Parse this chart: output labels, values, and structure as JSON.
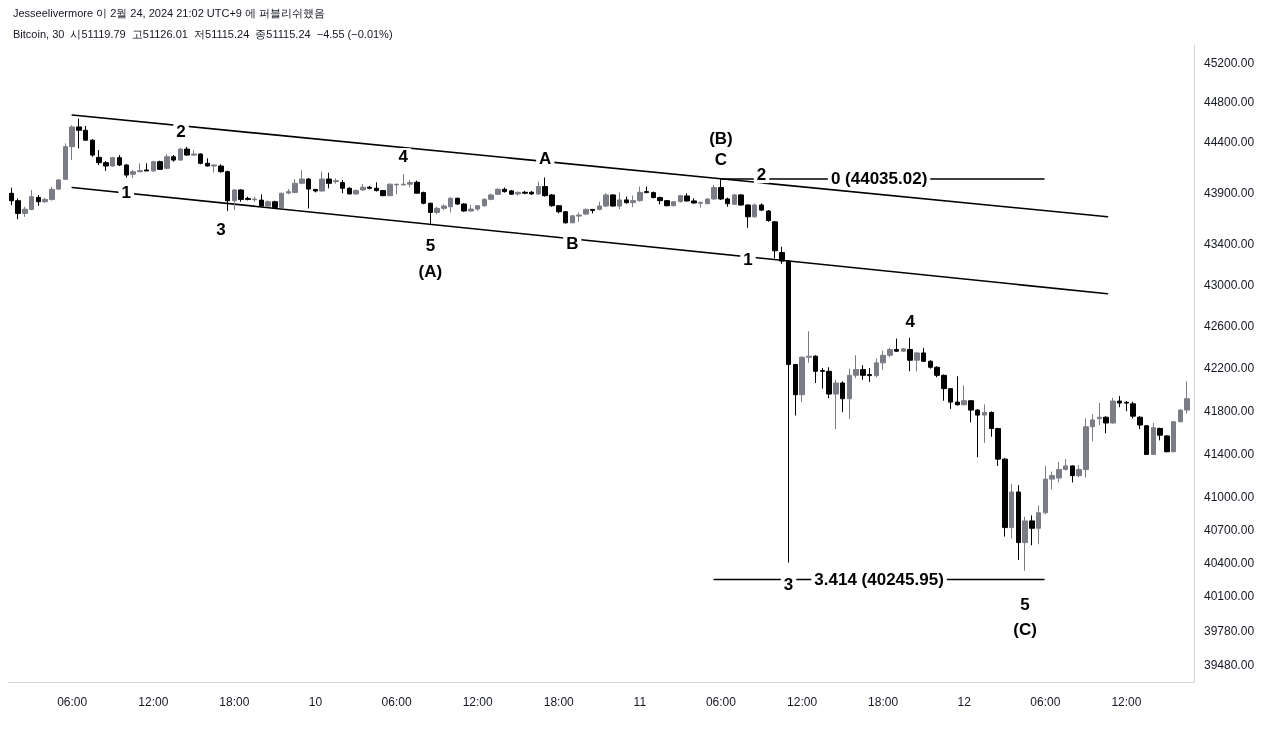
{
  "chart_data": {
    "type": "candlestick",
    "title": "Jesseelivermore 이 2월 24, 2024 21:02 UTC+9 에 퍼블리쉬했음",
    "subtitle": "Bitcoin, 30  시51119.79  고51126.01  저51115.24  종51115.24  −4.55 (−0.01%)",
    "log": "y",
    "grid": false,
    "xlim": [
      "2024-02-09T01:15",
      "2024-02-12T17:00"
    ],
    "xticks": [
      {
        "value": "2024-02-09T06:00",
        "label": "06:00"
      },
      {
        "value": "2024-02-09T12:00",
        "label": "12:00"
      },
      {
        "value": "2024-02-09T18:00",
        "label": "18:00"
      },
      {
        "value": "2024-02-10",
        "label": "10"
      },
      {
        "value": "2024-02-10T06:00",
        "label": "06:00"
      },
      {
        "value": "2024-02-10T12:00",
        "label": "12:00"
      },
      {
        "value": "2024-02-10T18:00",
        "label": "18:00"
      },
      {
        "value": "2024-02-11",
        "label": "11"
      },
      {
        "value": "2024-02-11T06:00",
        "label": "06:00"
      },
      {
        "value": "2024-02-11T12:00",
        "label": "12:00"
      },
      {
        "value": "2024-02-11T18:00",
        "label": "18:00"
      },
      {
        "value": "2024-02-12",
        "label": "12"
      },
      {
        "value": "2024-02-12T06:00",
        "label": "06:00"
      },
      {
        "value": "2024-02-12T12:00",
        "label": "12:00"
      }
    ],
    "ylim": [
      39330,
      45380
    ],
    "yticks": [
      {
        "value": 45200,
        "label": "45200.00"
      },
      {
        "value": 44800,
        "label": "44800.00"
      },
      {
        "value": 44400,
        "label": "44400.00"
      },
      {
        "value": 43900,
        "label": "43900.00"
      },
      {
        "value": 43400,
        "label": "43400.00"
      },
      {
        "value": 43000,
        "label": "43000.00"
      },
      {
        "value": 42600,
        "label": "42600.00"
      },
      {
        "value": 42200,
        "label": "42200.00"
      },
      {
        "value": 41800,
        "label": "41800.00"
      },
      {
        "value": 41400,
        "label": "41400.00"
      },
      {
        "value": 41000,
        "label": "41000.00"
      },
      {
        "value": 40700,
        "label": "40700.00"
      },
      {
        "value": 40400,
        "label": "40400.00"
      },
      {
        "value": 40100,
        "label": "40100.00"
      },
      {
        "value": 39780,
        "label": "39780.00"
      },
      {
        "value": 39480,
        "label": "39480.00"
      }
    ],
    "x": [
      "2024-02-09T01:30",
      "2024-02-09T02:00",
      "2024-02-09T02:30",
      "2024-02-09T03:00",
      "2024-02-09T03:30",
      "2024-02-09T04:00",
      "2024-02-09T04:30",
      "2024-02-09T05:00",
      "2024-02-09T05:30",
      "2024-02-09T06:00",
      "2024-02-09T06:30",
      "2024-02-09T07:00",
      "2024-02-09T07:30",
      "2024-02-09T08:00",
      "2024-02-09T08:30",
      "2024-02-09T09:00",
      "2024-02-09T09:30",
      "2024-02-09T10:00",
      "2024-02-09T10:30",
      "2024-02-09T11:00",
      "2024-02-09T11:30",
      "2024-02-09T12:00",
      "2024-02-09T12:30",
      "2024-02-09T13:00",
      "2024-02-09T13:30",
      "2024-02-09T14:00",
      "2024-02-09T14:30",
      "2024-02-09T15:00",
      "2024-02-09T15:30",
      "2024-02-09T16:00",
      "2024-02-09T16:30",
      "2024-02-09T17:00",
      "2024-02-09T17:30",
      "2024-02-09T18:00",
      "2024-02-09T18:30",
      "2024-02-09T19:00",
      "2024-02-09T19:30",
      "2024-02-09T20:00",
      "2024-02-09T20:30",
      "2024-02-09T21:00",
      "2024-02-09T21:30",
      "2024-02-09T22:00",
      "2024-02-09T22:30",
      "2024-02-09T23:00",
      "2024-02-09T23:30",
      "2024-02-10T00:00",
      "2024-02-10T00:30",
      "2024-02-10T01:00",
      "2024-02-10T01:30",
      "2024-02-10T02:00",
      "2024-02-10T02:30",
      "2024-02-10T03:00",
      "2024-02-10T03:30",
      "2024-02-10T04:00",
      "2024-02-10T04:30",
      "2024-02-10T05:00",
      "2024-02-10T05:30",
      "2024-02-10T06:00",
      "2024-02-10T06:30",
      "2024-02-10T07:00",
      "2024-02-10T07:30",
      "2024-02-10T08:00",
      "2024-02-10T08:30",
      "2024-02-10T09:00",
      "2024-02-10T09:30",
      "2024-02-10T10:00",
      "2024-02-10T10:30",
      "2024-02-10T11:00",
      "2024-02-10T11:30",
      "2024-02-10T12:00",
      "2024-02-10T12:30",
      "2024-02-10T13:00",
      "2024-02-10T13:30",
      "2024-02-10T14:00",
      "2024-02-10T14:30",
      "2024-02-10T15:00",
      "2024-02-10T15:30",
      "2024-02-10T16:00",
      "2024-02-10T16:30",
      "2024-02-10T17:00",
      "2024-02-10T17:30",
      "2024-02-10T18:00",
      "2024-02-10T18:30",
      "2024-02-10T19:00",
      "2024-02-10T19:30",
      "2024-02-10T20:00",
      "2024-02-10T20:30",
      "2024-02-10T21:00",
      "2024-02-10T21:30",
      "2024-02-10T22:00",
      "2024-02-10T22:30",
      "2024-02-10T23:00",
      "2024-02-10T23:30",
      "2024-02-11T00:00",
      "2024-02-11T00:30",
      "2024-02-11T01:00",
      "2024-02-11T01:30",
      "2024-02-11T02:00",
      "2024-02-11T02:30",
      "2024-02-11T03:00",
      "2024-02-11T03:30",
      "2024-02-11T04:00",
      "2024-02-11T04:30",
      "2024-02-11T05:00",
      "2024-02-11T05:30",
      "2024-02-11T06:00",
      "2024-02-11T06:30",
      "2024-02-11T07:00",
      "2024-02-11T07:30",
      "2024-02-11T08:00",
      "2024-02-11T08:30",
      "2024-02-11T09:00",
      "2024-02-11T09:30",
      "2024-02-11T10:00",
      "2024-02-11T10:30",
      "2024-02-11T11:00",
      "2024-02-11T11:30",
      "2024-02-11T12:00",
      "2024-02-11T12:30",
      "2024-02-11T13:00",
      "2024-02-11T13:30",
      "2024-02-11T14:00",
      "2024-02-11T14:30",
      "2024-02-11T15:00",
      "2024-02-11T15:30",
      "2024-02-11T16:00",
      "2024-02-11T16:30",
      "2024-02-11T17:00",
      "2024-02-11T17:30",
      "2024-02-11T18:00",
      "2024-02-11T18:30",
      "2024-02-11T19:00",
      "2024-02-11T19:30",
      "2024-02-11T20:00",
      "2024-02-11T20:30",
      "2024-02-11T21:00",
      "2024-02-11T21:30",
      "2024-02-11T22:00",
      "2024-02-11T22:30",
      "2024-02-11T23:00",
      "2024-02-11T23:30",
      "2024-02-12T00:00",
      "2024-02-12T00:30",
      "2024-02-12T01:00",
      "2024-02-12T01:30",
      "2024-02-12T02:00",
      "2024-02-12T02:30",
      "2024-02-12T03:00",
      "2024-02-12T03:30",
      "2024-02-12T04:00",
      "2024-02-12T04:30",
      "2024-02-12T05:00",
      "2024-02-12T05:30",
      "2024-02-12T06:00",
      "2024-02-12T06:30",
      "2024-02-12T07:00",
      "2024-02-12T07:30",
      "2024-02-12T08:00",
      "2024-02-12T08:30",
      "2024-02-12T09:00",
      "2024-02-12T09:30",
      "2024-02-12T10:00",
      "2024-02-12T10:30",
      "2024-02-12T11:00",
      "2024-02-12T11:30",
      "2024-02-12T12:00",
      "2024-02-12T12:30",
      "2024-02-12T13:00",
      "2024-02-12T13:30",
      "2024-02-12T14:00",
      "2024-02-12T14:30",
      "2024-02-12T15:00",
      "2024-02-12T15:30",
      "2024-02-12T16:00",
      "2024-02-12T16:30"
    ],
    "ohlc": [
      [
        43893,
        43949,
        43777,
        43820
      ],
      [
        43820,
        43843,
        43638,
        43695
      ],
      [
        43695,
        43760,
        43662,
        43737
      ],
      [
        43734,
        43926,
        43728,
        43860
      ],
      [
        43853,
        43876,
        43770,
        43810
      ],
      [
        43810,
        43850,
        43800,
        43833
      ],
      [
        43833,
        43958,
        43820,
        43932
      ],
      [
        43935,
        44034,
        43926,
        44025
      ],
      [
        44031,
        44388,
        44025,
        44355
      ],
      [
        44355,
        44569,
        44222,
        44552
      ],
      [
        44552,
        44635,
        44338,
        44519
      ],
      [
        44519,
        44562,
        44414,
        44420
      ],
      [
        44420,
        44430,
        44255,
        44272
      ],
      [
        44249,
        44322,
        44173,
        44196
      ],
      [
        44196,
        44213,
        44114,
        44163
      ],
      [
        44163,
        44255,
        44157,
        44246
      ],
      [
        44246,
        44272,
        44163,
        44173
      ],
      [
        44173,
        44183,
        44048,
        44074
      ],
      [
        44081,
        44124,
        44041,
        44107
      ],
      [
        44107,
        44190,
        44100,
        44117
      ],
      [
        44124,
        44190,
        44114,
        44114
      ],
      [
        44114,
        44216,
        44107,
        44206
      ],
      [
        44206,
        44216,
        44124,
        44130
      ],
      [
        44140,
        44279,
        44130,
        44255
      ],
      [
        44255,
        44272,
        44206,
        44222
      ],
      [
        44222,
        44345,
        44216,
        44331
      ],
      [
        44331,
        44354,
        44265,
        44272
      ],
      [
        44272,
        44322,
        44265,
        44282
      ],
      [
        44282,
        44289,
        44180,
        44190
      ],
      [
        44190,
        44239,
        44157,
        44163
      ],
      [
        44163,
        44180,
        44100,
        44173
      ],
      [
        44163,
        44180,
        44097,
        44107
      ],
      [
        44107,
        44117,
        43718,
        43820
      ],
      [
        43820,
        43935,
        43728,
        43926
      ],
      [
        43926,
        43935,
        43810,
        43833
      ],
      [
        43843,
        43860,
        43823,
        43833
      ],
      [
        43830,
        43860,
        43810,
        43836
      ],
      [
        43826,
        43883,
        43760,
        43767
      ],
      [
        43767,
        43823,
        43757,
        43810
      ],
      [
        43810,
        43820,
        43744,
        43754
      ],
      [
        43754,
        43902,
        43751,
        43893
      ],
      [
        43896,
        43935,
        43883,
        43909
      ],
      [
        43902,
        44034,
        43893,
        43992
      ],
      [
        43992,
        44124,
        43982,
        44034
      ],
      [
        44034,
        44041,
        43744,
        43935
      ],
      [
        43932,
        43935,
        43902,
        43916
      ],
      [
        43916,
        44107,
        43909,
        44034
      ],
      [
        44034,
        44097,
        43942,
        43992
      ],
      [
        44008,
        44041,
        43988,
        44018
      ],
      [
        43999,
        44025,
        43894,
        43943
      ],
      [
        43943,
        43953,
        43884,
        43887
      ],
      [
        43887,
        43933,
        43877,
        43920
      ],
      [
        43927,
        43986,
        43917,
        43953
      ],
      [
        43953,
        43966,
        43933,
        43943
      ],
      [
        43943,
        44002,
        43910,
        43920
      ],
      [
        43920,
        43927,
        43864,
        43870
      ],
      [
        43870,
        43992,
        43864,
        43983
      ],
      [
        43976,
        43986,
        43884,
        43983
      ],
      [
        43976,
        44082,
        43969,
        43983
      ],
      [
        43983,
        44025,
        43953,
        43999
      ],
      [
        44002,
        44019,
        43894,
        43894
      ],
      [
        43900,
        43910,
        43785,
        43795
      ],
      [
        43795,
        43801,
        43587,
        43705
      ],
      [
        43705,
        43761,
        43689,
        43745
      ],
      [
        43745,
        43785,
        43728,
        43768
      ],
      [
        43761,
        43854,
        43705,
        43844
      ],
      [
        43844,
        43851,
        43778,
        43788
      ],
      [
        43788,
        43795,
        43712,
        43719
      ],
      [
        43719,
        43778,
        43712,
        43738
      ],
      [
        43738,
        43778,
        43722,
        43771
      ],
      [
        43771,
        43844,
        43761,
        43834
      ],
      [
        43834,
        43890,
        43824,
        43877
      ],
      [
        43884,
        43943,
        43877,
        43933
      ],
      [
        43933,
        43950,
        43900,
        43910
      ],
      [
        43917,
        43927,
        43877,
        43884
      ],
      [
        43887,
        43910,
        43870,
        43903
      ],
      [
        43903,
        43917,
        43884,
        43894
      ],
      [
        43903,
        43917,
        43877,
        43887
      ],
      [
        43887,
        44009,
        43877,
        43960
      ],
      [
        43960,
        44049,
        43861,
        43870
      ],
      [
        43877,
        43887,
        43761,
        43771
      ],
      [
        43771,
        43778,
        43696,
        43712
      ],
      [
        43712,
        43719,
        43597,
        43603
      ],
      [
        43603,
        43679,
        43603,
        43672
      ],
      [
        43669,
        43705,
        43613,
        43679
      ],
      [
        43689,
        43745,
        43679,
        43735
      ],
      [
        43735,
        43738,
        43696,
        43725
      ],
      [
        43735,
        43811,
        43725,
        43768
      ],
      [
        43768,
        43894,
        43758,
        43877
      ],
      [
        43877,
        43884,
        43761,
        43768
      ],
      [
        43768,
        43903,
        43738,
        43828
      ],
      [
        43828,
        43861,
        43791,
        43801
      ],
      [
        43801,
        43870,
        43758,
        43821
      ],
      [
        43821,
        43960,
        43811,
        43903
      ],
      [
        43910,
        43960,
        43894,
        43900
      ],
      [
        43900,
        43910,
        43844,
        43851
      ],
      [
        43851,
        43861,
        43785,
        43821
      ],
      [
        43821,
        43828,
        43765,
        43771
      ],
      [
        43771,
        43811,
        43765,
        43811
      ],
      [
        43811,
        43877,
        43804,
        43870
      ],
      [
        43867,
        43893,
        43811,
        43818
      ],
      [
        43818,
        43844,
        43791,
        43798
      ],
      [
        43795,
        43811,
        43752,
        43804
      ],
      [
        43791,
        43844,
        43785,
        43837
      ],
      [
        43837,
        43976,
        43831,
        43950
      ],
      [
        43950,
        44035,
        43827,
        43837
      ],
      [
        43837,
        43851,
        43761,
        43791
      ],
      [
        43785,
        43887,
        43778,
        43877
      ],
      [
        43877,
        43887,
        43771,
        43778
      ],
      [
        43778,
        43785,
        43554,
        43662
      ],
      [
        43662,
        43794,
        43653,
        43778
      ],
      [
        43778,
        43794,
        43719,
        43728
      ],
      [
        43719,
        43729,
        43613,
        43626
      ],
      [
        43613,
        43620,
        43257,
        43330
      ],
      [
        43313,
        43370,
        43203,
        43230
      ],
      [
        43230,
        43237,
        40400,
        42237
      ],
      [
        42237,
        42243,
        41756,
        41952
      ],
      [
        41952,
        42316,
        41881,
        42306
      ],
      [
        42306,
        42554,
        42253,
        42316
      ],
      [
        42316,
        42325,
        42062,
        42173
      ],
      [
        42180,
        42205,
        42009,
        42173
      ],
      [
        42173,
        42211,
        41920,
        41958
      ],
      [
        41958,
        42094,
        41628,
        42062
      ],
      [
        42062,
        42078,
        41787,
        41914
      ],
      [
        41914,
        42198,
        41724,
        42135
      ],
      [
        42135,
        42325,
        42108,
        42189
      ],
      [
        42189,
        42230,
        42094,
        42135
      ],
      [
        42142,
        42205,
        42072,
        42132
      ],
      [
        42132,
        42294,
        42116,
        42253
      ],
      [
        42253,
        42370,
        42189,
        42325
      ],
      [
        42325,
        42395,
        42306,
        42380
      ],
      [
        42380,
        42484,
        42357,
        42364
      ],
      [
        42364,
        42395,
        42357,
        42386
      ],
      [
        42380,
        42491,
        42173,
        42278
      ],
      [
        42278,
        42357,
        42173,
        42347
      ],
      [
        42347,
        42395,
        42262,
        42268
      ],
      [
        42268,
        42278,
        42198,
        42211
      ],
      [
        42211,
        42221,
        42116,
        42135
      ],
      [
        42135,
        42142,
        41895,
        42009
      ],
      [
        42009,
        42015,
        41818,
        41882
      ],
      [
        41882,
        42126,
        41850,
        41857
      ],
      [
        41857,
        42040,
        41850,
        41895
      ],
      [
        41895,
        41901,
        41692,
        41807
      ],
      [
        41807,
        41817,
        41367,
        41760
      ],
      [
        41760,
        41861,
        41500,
        41785
      ],
      [
        41785,
        41795,
        41558,
        41634
      ],
      [
        41634,
        41640,
        41286,
        41349
      ],
      [
        41349,
        41360,
        40636,
        40718
      ],
      [
        40718,
        41117,
        40618,
        41045
      ],
      [
        41045,
        41108,
        40424,
        40581
      ],
      [
        40581,
        40818,
        40325,
        40779
      ],
      [
        40779,
        40830,
        40557,
        40712
      ],
      [
        40712,
        40921,
        40566,
        40854
      ],
      [
        40854,
        41286,
        40839,
        41164
      ],
      [
        41164,
        41234,
        41069,
        41196
      ],
      [
        41174,
        41324,
        41133,
        41253
      ],
      [
        41253,
        41349,
        41243,
        41286
      ],
      [
        41286,
        41292,
        41133,
        41196
      ],
      [
        41196,
        41292,
        41180,
        41253
      ],
      [
        41253,
        41730,
        41180,
        41651
      ],
      [
        41651,
        41769,
        41514,
        41715
      ],
      [
        41727,
        41876,
        41667,
        41740
      ],
      [
        41740,
        41750,
        41590,
        41686
      ],
      [
        41686,
        41923,
        41680,
        41892
      ],
      [
        41892,
        41940,
        41835,
        41873
      ],
      [
        41880,
        41892,
        41797,
        41873
      ],
      [
        41866,
        41886,
        41730,
        41750
      ],
      [
        41740,
        41750,
        41629,
        41667
      ],
      [
        41660,
        41667,
        41387,
        41393
      ],
      [
        41393,
        41686,
        41387,
        41642
      ],
      [
        41635,
        41642,
        41524,
        41572
      ],
      [
        41565,
        41572,
        41412,
        41418
      ],
      [
        41418,
        41705,
        41412,
        41698
      ],
      [
        41698,
        41817,
        41692,
        41807
      ],
      [
        41807,
        42078,
        41775,
        41914
      ]
    ],
    "series": [
      {
        "type": "line",
        "color": "#000000",
        "x": [
          "2024-02-09T06:00",
          "2024-02-12T10:36"
        ],
        "values": [
          44672,
          43662
        ]
      },
      {
        "type": "line",
        "color": "#000000",
        "x": [
          "2024-02-09T06:00",
          "2024-02-12T10:36"
        ],
        "values": [
          43950,
          42914
        ]
      },
      {
        "type": "line",
        "color": "#000000",
        "x": [
          "2024-02-11T06:00",
          "2024-02-12T05:54"
        ],
        "values": [
          44035.02,
          44035.02
        ]
      },
      {
        "type": "line",
        "color": "#000000",
        "x": [
          "2024-02-11T05:30",
          "2024-02-12T05:54"
        ],
        "values": [
          40245.95,
          40245.95
        ]
      }
    ],
    "annotations": [
      {
        "text": "1",
        "x": "2024-02-09T10:00",
        "y": 43900
      },
      {
        "text": "2",
        "x": "2024-02-09T14:03",
        "y": 44504
      },
      {
        "text": "3",
        "x": "2024-02-09T17:00",
        "y": 43534
      },
      {
        "text": "4",
        "x": "2024-02-10T06:30",
        "y": 44256
      },
      {
        "text": "5",
        "x": "2024-02-10T08:30",
        "y": 43385
      },
      {
        "text": "(A)",
        "x": "2024-02-10T08:30",
        "y": 43130
      },
      {
        "text": "A",
        "x": "2024-02-10T17:00",
        "y": 44237
      },
      {
        "text": "B",
        "x": "2024-02-10T19:00",
        "y": 43405
      },
      {
        "text": "(B)",
        "x": "2024-02-11T06:00",
        "y": 44435
      },
      {
        "text": "C",
        "x": "2024-02-11T06:00",
        "y": 44227
      },
      {
        "text": "2",
        "x": "2024-02-11T09:00",
        "y": 44078
      },
      {
        "text": "1",
        "x": "2024-02-11T08:00",
        "y": 43250
      },
      {
        "text": "0 (44035.02)",
        "x": "2024-02-11T17:42",
        "y": 44035.02
      },
      {
        "text": "4",
        "x": "2024-02-11T20:00",
        "y": 42650
      },
      {
        "text": "3",
        "x": "2024-02-11T11:00",
        "y": 40200
      },
      {
        "text": "3.414 (40245.95)",
        "x": "2024-02-11T17:42",
        "y": 40245.95
      },
      {
        "text": "5",
        "x": "2024-02-12T04:30",
        "y": 40018
      },
      {
        "text": "(C)",
        "x": "2024-02-12T04:30",
        "y": 39800
      }
    ]
  }
}
